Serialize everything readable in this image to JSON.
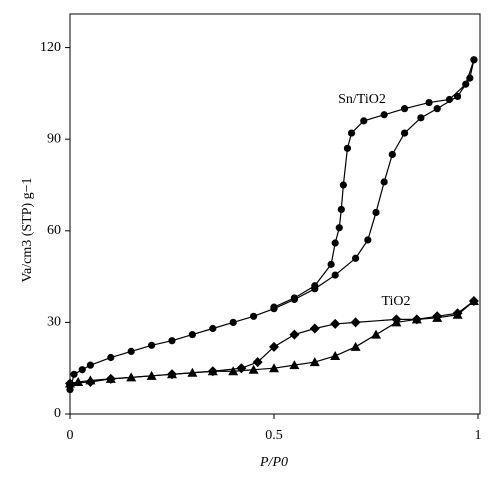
{
  "chart_data": {
    "type": "line",
    "x_label": "P/P0",
    "y_label": "Va/cm3 (STP) g−1",
    "xlim": [
      0,
      1
    ],
    "xticks": [
      0,
      0.5,
      1
    ],
    "ylim": [
      0,
      131
    ],
    "yticks": [
      0,
      30,
      60,
      90,
      120
    ],
    "series": [
      {
        "name": "Sn/TiO2",
        "color": "#000000",
        "segments": [
          {
            "marker": "circle",
            "x": [
              0,
              0.01,
              0.03,
              0.05,
              0.1,
              0.15,
              0.2,
              0.25,
              0.3,
              0.35,
              0.4,
              0.45,
              0.5,
              0.55,
              0.6,
              0.65,
              0.7,
              0.73,
              0.75,
              0.77,
              0.79,
              0.82,
              0.86,
              0.9,
              0.95,
              0.98,
              0.99
            ],
            "values": [
              8,
              13,
              14.5,
              16,
              18.5,
              20.5,
              22.5,
              24,
              26,
              28,
              30,
              32,
              34.5,
              37.5,
              41,
              45.5,
              51,
              57,
              66,
              76,
              85,
              92,
              97,
              100,
              104,
              110,
              116
            ]
          },
          {
            "marker": "circle",
            "x": [
              0.99,
              0.97,
              0.93,
              0.88,
              0.82,
              0.77,
              0.72,
              0.69,
              0.68,
              0.67,
              0.665,
              0.66,
              0.65,
              0.64,
              0.6,
              0.55,
              0.5
            ],
            "values": [
              116,
              108,
              103,
              102,
              100,
              98,
              96,
              92,
              87,
              75,
              67,
              61,
              56,
              49,
              42,
              38,
              35
            ]
          }
        ]
      },
      {
        "name": "TiO2",
        "color": "#000000",
        "segments": [
          {
            "marker": "triangle",
            "x": [
              0,
              0.02,
              0.05,
              0.1,
              0.15,
              0.2,
              0.25,
              0.3,
              0.35,
              0.4,
              0.45,
              0.5,
              0.55,
              0.6,
              0.65,
              0.7,
              0.75,
              0.8,
              0.85,
              0.9,
              0.95,
              0.99
            ],
            "values": [
              10,
              10.5,
              11,
              11.5,
              12,
              12.5,
              13,
              13.5,
              14,
              14,
              14.5,
              15,
              16,
              17,
              19,
              22,
              26,
              30,
              31,
              31.5,
              32.5,
              37
            ]
          },
          {
            "marker": "diamond",
            "x": [
              0.99,
              0.95,
              0.9,
              0.85,
              0.8,
              0.7,
              0.65,
              0.6,
              0.55,
              0.5,
              0.46,
              0.42,
              0.35,
              0.25,
              0.1,
              0.05,
              0
            ],
            "values": [
              37,
              33,
              32,
              31,
              31,
              30,
              29.5,
              28,
              26,
              22,
              17,
              15,
              14,
              13,
              11.5,
              10.5,
              10
            ]
          }
        ]
      }
    ]
  }
}
